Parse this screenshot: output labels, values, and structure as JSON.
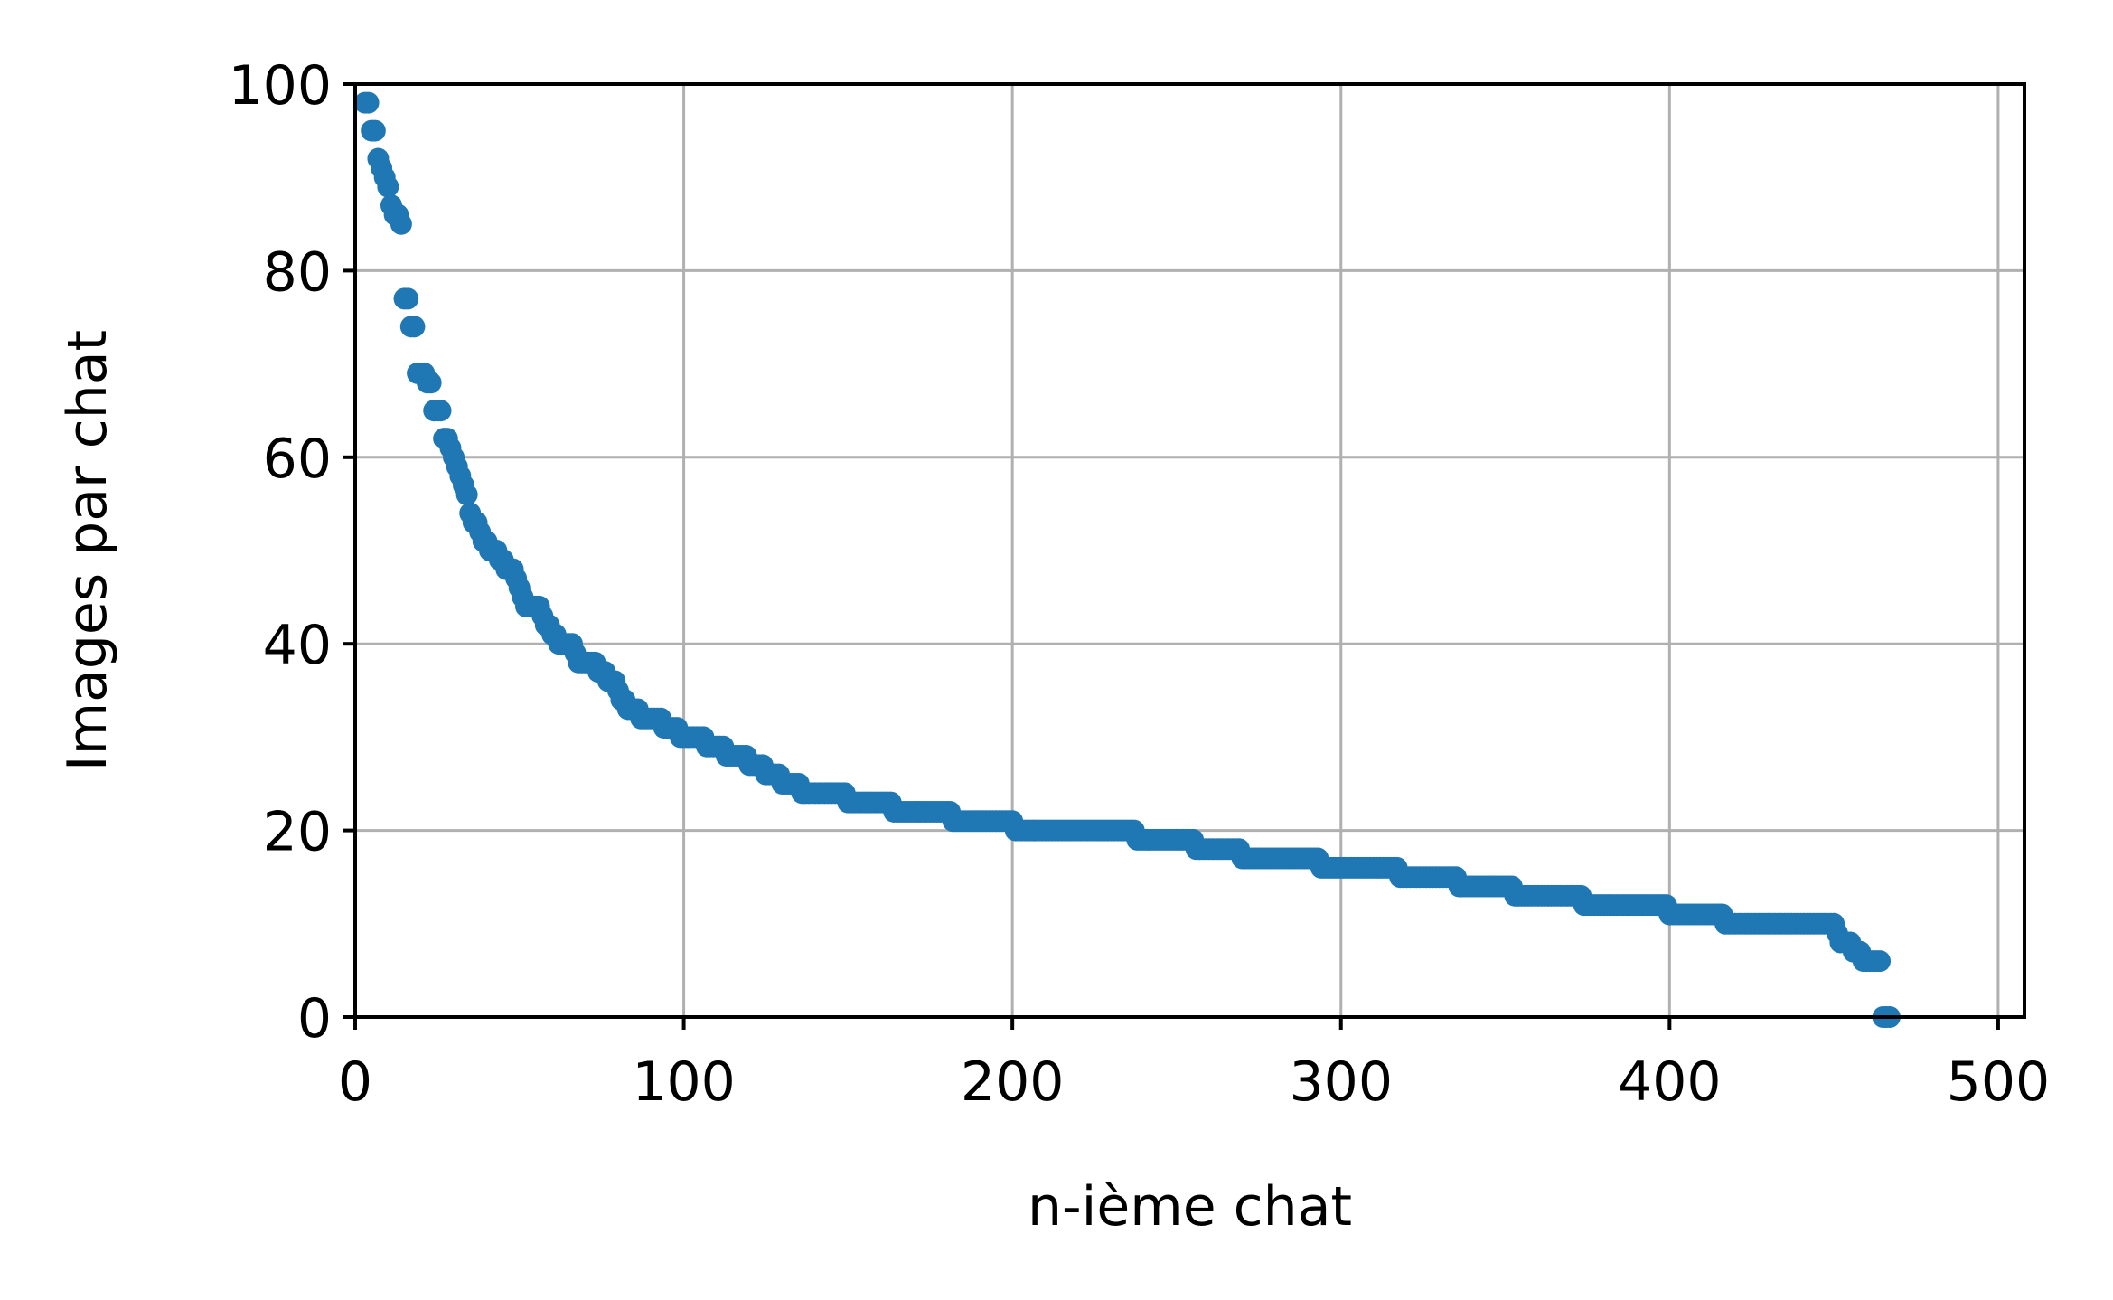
{
  "chart_data": {
    "type": "scatter",
    "title": "",
    "xlabel": "n-ième chat",
    "ylabel": "Images par chat",
    "xlim": [
      0,
      508
    ],
    "ylim": [
      0,
      100
    ],
    "xticks": [
      0,
      100,
      200,
      300,
      400,
      500
    ],
    "yticks": [
      0,
      20,
      40,
      60,
      80,
      100
    ],
    "grid": true,
    "marker_color": "#1f77b4",
    "series": [
      {
        "x_start": 3,
        "y": [
          98,
          98,
          95,
          95,
          92,
          91,
          90,
          89,
          87,
          86,
          86,
          85,
          77,
          77,
          74,
          74,
          69,
          69,
          69,
          68,
          68,
          65,
          65,
          65,
          62,
          62,
          61,
          60,
          59,
          58,
          57,
          56,
          54,
          53,
          53,
          52,
          51,
          51,
          50,
          50,
          50,
          49,
          49,
          48,
          48,
          48,
          47,
          46,
          45,
          44,
          44,
          44,
          44,
          44,
          43,
          42,
          42,
          41,
          41,
          40,
          40,
          40,
          40,
          40,
          39,
          38,
          38,
          38,
          38,
          38,
          38,
          37,
          37,
          37,
          36,
          36,
          36,
          35,
          34,
          34,
          33,
          33,
          33,
          33,
          32,
          32,
          32,
          32,
          32,
          32,
          32,
          31,
          31,
          31,
          31,
          31,
          30,
          30,
          30,
          30,
          30,
          30,
          30,
          30,
          29,
          29,
          29,
          29,
          29,
          29,
          28,
          28,
          28,
          28,
          28,
          28,
          28,
          27,
          27,
          27,
          27,
          27,
          26,
          26,
          26,
          26,
          26,
          25,
          25,
          25,
          25,
          25,
          25,
          24,
          24,
          24,
          24,
          24,
          24,
          24,
          24,
          24,
          24,
          24,
          24,
          24,
          24,
          23,
          23,
          23,
          23,
          23,
          23,
          23,
          23,
          23,
          23,
          23,
          23,
          23,
          23,
          22,
          22,
          22,
          22,
          22,
          22,
          22,
          22,
          22,
          22,
          22,
          22,
          22,
          22,
          22,
          22,
          22,
          22,
          21,
          21,
          21,
          21,
          21,
          21,
          21,
          21,
          21,
          21,
          21,
          21,
          21,
          21,
          21,
          21,
          21,
          21,
          21,
          20,
          20,
          20,
          20,
          20,
          20,
          20,
          20,
          20,
          20,
          20,
          20,
          20,
          20,
          20,
          20,
          20,
          20,
          20,
          20,
          20,
          20,
          20,
          20,
          20,
          20,
          20,
          20,
          20,
          20,
          20,
          20,
          20,
          20,
          20,
          20,
          20,
          19,
          19,
          19,
          19,
          19,
          19,
          19,
          19,
          19,
          19,
          19,
          19,
          19,
          19,
          19,
          19,
          19,
          19,
          18,
          18,
          18,
          18,
          18,
          18,
          18,
          18,
          18,
          18,
          18,
          18,
          18,
          18,
          17,
          17,
          17,
          17,
          17,
          17,
          17,
          17,
          17,
          17,
          17,
          17,
          17,
          17,
          17,
          17,
          17,
          17,
          17,
          17,
          17,
          17,
          17,
          17,
          16,
          16,
          16,
          16,
          16,
          16,
          16,
          16,
          16,
          16,
          16,
          16,
          16,
          16,
          16,
          16,
          16,
          16,
          16,
          16,
          16,
          16,
          16,
          16,
          15,
          15,
          15,
          15,
          15,
          15,
          15,
          15,
          15,
          15,
          15,
          15,
          15,
          15,
          15,
          15,
          15,
          15,
          14,
          14,
          14,
          14,
          14,
          14,
          14,
          14,
          14,
          14,
          14,
          14,
          14,
          14,
          14,
          14,
          14,
          13,
          13,
          13,
          13,
          13,
          13,
          13,
          13,
          13,
          13,
          13,
          13,
          13,
          13,
          13,
          13,
          13,
          13,
          13,
          13,
          13,
          12,
          12,
          12,
          12,
          12,
          12,
          12,
          12,
          12,
          12,
          12,
          12,
          12,
          12,
          12,
          12,
          12,
          12,
          12,
          12,
          12,
          12,
          12,
          12,
          12,
          12,
          11,
          11,
          11,
          11,
          11,
          11,
          11,
          11,
          11,
          11,
          11,
          11,
          11,
          11,
          11,
          11,
          11,
          10,
          10,
          10,
          10,
          10,
          10,
          10,
          10,
          10,
          10,
          10,
          10,
          10,
          10,
          10,
          10,
          10,
          10,
          10,
          10,
          10,
          10,
          10,
          10,
          10,
          10,
          10,
          10,
          10,
          10,
          10,
          10,
          10,
          10,
          9,
          8,
          8,
          8,
          8,
          7,
          7,
          7,
          6,
          6,
          6,
          6,
          6,
          6,
          0,
          0,
          0
        ]
      }
    ]
  }
}
